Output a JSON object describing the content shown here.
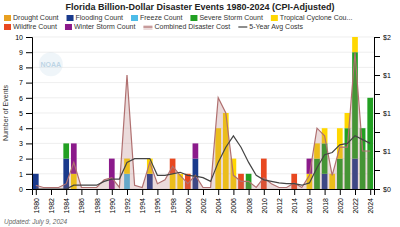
{
  "chart_data": {
    "type": "bar",
    "title": "Florida Billion-Dollar Disaster Events 1980-2024 (CPI-Adjusted)",
    "y_label": "Number of Events",
    "annotations": [
      "NOAA",
      "Updated: July 9, 2024"
    ],
    "stacked": true,
    "grid": true,
    "legend": "top",
    "x": [
      1980,
      1981,
      1982,
      1983,
      1984,
      1985,
      1986,
      1987,
      1988,
      1989,
      1990,
      1991,
      1992,
      1993,
      1994,
      1995,
      1996,
      1997,
      1998,
      1999,
      2000,
      2001,
      2002,
      2003,
      2004,
      2005,
      2006,
      2007,
      2008,
      2009,
      2010,
      2011,
      2012,
      2013,
      2014,
      2015,
      2016,
      2017,
      2018,
      2019,
      2020,
      2021,
      2022,
      2023,
      2024
    ],
    "xlim": [
      1979.5,
      2024.5
    ],
    "xticks": [
      1980,
      1982,
      1984,
      1986,
      1988,
      1990,
      1992,
      1994,
      1996,
      1998,
      2000,
      2002,
      2004,
      2006,
      2008,
      2010,
      2012,
      2014,
      2016,
      2018,
      2020,
      2022,
      2024
    ],
    "ylim": [
      0,
      10
    ],
    "yticks": [
      0,
      1,
      2,
      3,
      4,
      5,
      6,
      7,
      8,
      9,
      10
    ],
    "y2lim": [
      0,
      2.0
    ],
    "y2ticks": [
      {
        "value": 0,
        "label": "$0"
      },
      {
        "value": 0.25,
        "label": ""
      },
      {
        "value": 0.5,
        "label": "$1"
      },
      {
        "value": 0.75,
        "label": ""
      },
      {
        "value": 1.0,
        "label": "$1"
      },
      {
        "value": 1.25,
        "label": ""
      },
      {
        "value": 1.5,
        "label": "$1"
      },
      {
        "value": 1.75,
        "label": ""
      },
      {
        "value": 2.0,
        "label": "$2"
      }
    ],
    "series": [
      {
        "name": "Drought Count",
        "type": "bar",
        "color": "#E8A020",
        "values": [
          0,
          0,
          0,
          0,
          0,
          0,
          0,
          0,
          0,
          0,
          0,
          0,
          0,
          0,
          0,
          0,
          0,
          0,
          0,
          0,
          0,
          0,
          0,
          0,
          0,
          0,
          0,
          0,
          0,
          0,
          0,
          0,
          0,
          0,
          0,
          0,
          0,
          0,
          0,
          0,
          0,
          0,
          0,
          0,
          0
        ]
      },
      {
        "name": "Flooding Count",
        "type": "bar",
        "color": "#1A3A8C",
        "values": [
          1,
          0,
          0,
          0,
          2,
          0,
          0,
          0,
          0,
          0,
          0,
          0,
          0,
          0,
          0,
          1,
          0,
          0,
          0,
          0,
          0,
          2,
          0,
          0,
          0,
          0,
          0,
          0,
          0,
          0,
          0,
          0,
          0,
          0,
          0,
          0,
          0,
          0,
          1,
          0,
          0,
          0,
          2,
          0,
          0
        ]
      },
      {
        "name": "Freeze Count",
        "type": "bar",
        "color": "#4DBCE8",
        "values": [
          0,
          0,
          0,
          0,
          0,
          0,
          0,
          0,
          0,
          0,
          0,
          0,
          1,
          0,
          0,
          0,
          0,
          0,
          0,
          0,
          0,
          0,
          0,
          0,
          0,
          0,
          0,
          0,
          0,
          0,
          0,
          0,
          0,
          0,
          0,
          0,
          0,
          0,
          0,
          0,
          0,
          0,
          0,
          0,
          0
        ]
      },
      {
        "name": "Severe Storm Count",
        "type": "bar",
        "color": "#22A022",
        "values": [
          0,
          0,
          0,
          0,
          1,
          0,
          0,
          0,
          0,
          0,
          0,
          0,
          0,
          0,
          0,
          0,
          0,
          0,
          0,
          0,
          0,
          0,
          0,
          0,
          0,
          0,
          0,
          0,
          1,
          0,
          0,
          0,
          0,
          0,
          0,
          0,
          0,
          2,
          2,
          0,
          2,
          4,
          7,
          4,
          6
        ]
      },
      {
        "name": "Tropical Cyclone Cou...",
        "type": "bar",
        "color": "#FFD700",
        "values": [
          0,
          0,
          0,
          0,
          0,
          1,
          0,
          0,
          0,
          0,
          0,
          0,
          1,
          0,
          0,
          1,
          0,
          0,
          1,
          1,
          0,
          0,
          0,
          0,
          4,
          5,
          2,
          0,
          0,
          0,
          0,
          0,
          0,
          0,
          0,
          0,
          1,
          1,
          1,
          1,
          2,
          1,
          1,
          0,
          0
        ]
      },
      {
        "name": "Wildfire Count",
        "type": "bar",
        "color": "#E84820",
        "values": [
          0,
          0,
          0,
          0,
          0,
          0,
          0,
          0,
          0,
          0,
          0,
          0,
          0,
          0,
          0,
          0,
          0,
          0,
          1,
          0,
          1,
          0,
          0,
          0,
          0,
          0,
          0,
          1,
          0,
          0,
          2,
          0,
          0,
          0,
          1,
          0,
          0,
          0,
          0,
          0,
          0,
          0,
          0,
          0,
          0
        ]
      },
      {
        "name": "Winter Storm Count",
        "type": "bar",
        "color": "#8B1A8B",
        "values": [
          0,
          0,
          0,
          0,
          0,
          2,
          0,
          0,
          0,
          0,
          2,
          0,
          0,
          0,
          0,
          0,
          0,
          0,
          0,
          0,
          0,
          1,
          0,
          0,
          0,
          0,
          0,
          0,
          0,
          0,
          0,
          0,
          0,
          0,
          0,
          0,
          1,
          0,
          0,
          0,
          0,
          0,
          0,
          0,
          0
        ]
      },
      {
        "name": "Combined Disaster Cost",
        "type": "area",
        "axis": "y2",
        "color": "#B07070",
        "values": [
          0.05,
          0.02,
          0.02,
          0.02,
          0.07,
          0.35,
          0.02,
          0.02,
          0.02,
          0.12,
          0.15,
          0.02,
          1.5,
          0.05,
          0.02,
          0.35,
          0.07,
          0.12,
          0.3,
          0.18,
          0.07,
          0.18,
          0.02,
          0.02,
          1.2,
          1.0,
          0.18,
          0.1,
          0.1,
          0.02,
          0.15,
          0.07,
          0.02,
          0.02,
          0.08,
          0.02,
          0.18,
          0.8,
          0.7,
          0.18,
          0.55,
          0.55,
          1.8,
          0.5,
          0.5
        ]
      },
      {
        "name": "5-Year Avg Costs",
        "type": "line",
        "axis": "y2",
        "color": "#444444",
        "values": [
          0.0,
          0.0,
          0.0,
          0.0,
          0.0,
          0.05,
          0.05,
          0.05,
          0.05,
          0.1,
          0.13,
          0.13,
          0.35,
          0.4,
          0.4,
          0.4,
          0.18,
          0.18,
          0.2,
          0.22,
          0.18,
          0.17,
          0.15,
          0.1,
          0.35,
          0.55,
          0.7,
          0.55,
          0.35,
          0.18,
          0.12,
          0.1,
          0.08,
          0.07,
          0.07,
          0.05,
          0.08,
          0.28,
          0.45,
          0.48,
          0.58,
          0.6,
          0.7,
          0.65,
          0.6
        ]
      }
    ]
  }
}
